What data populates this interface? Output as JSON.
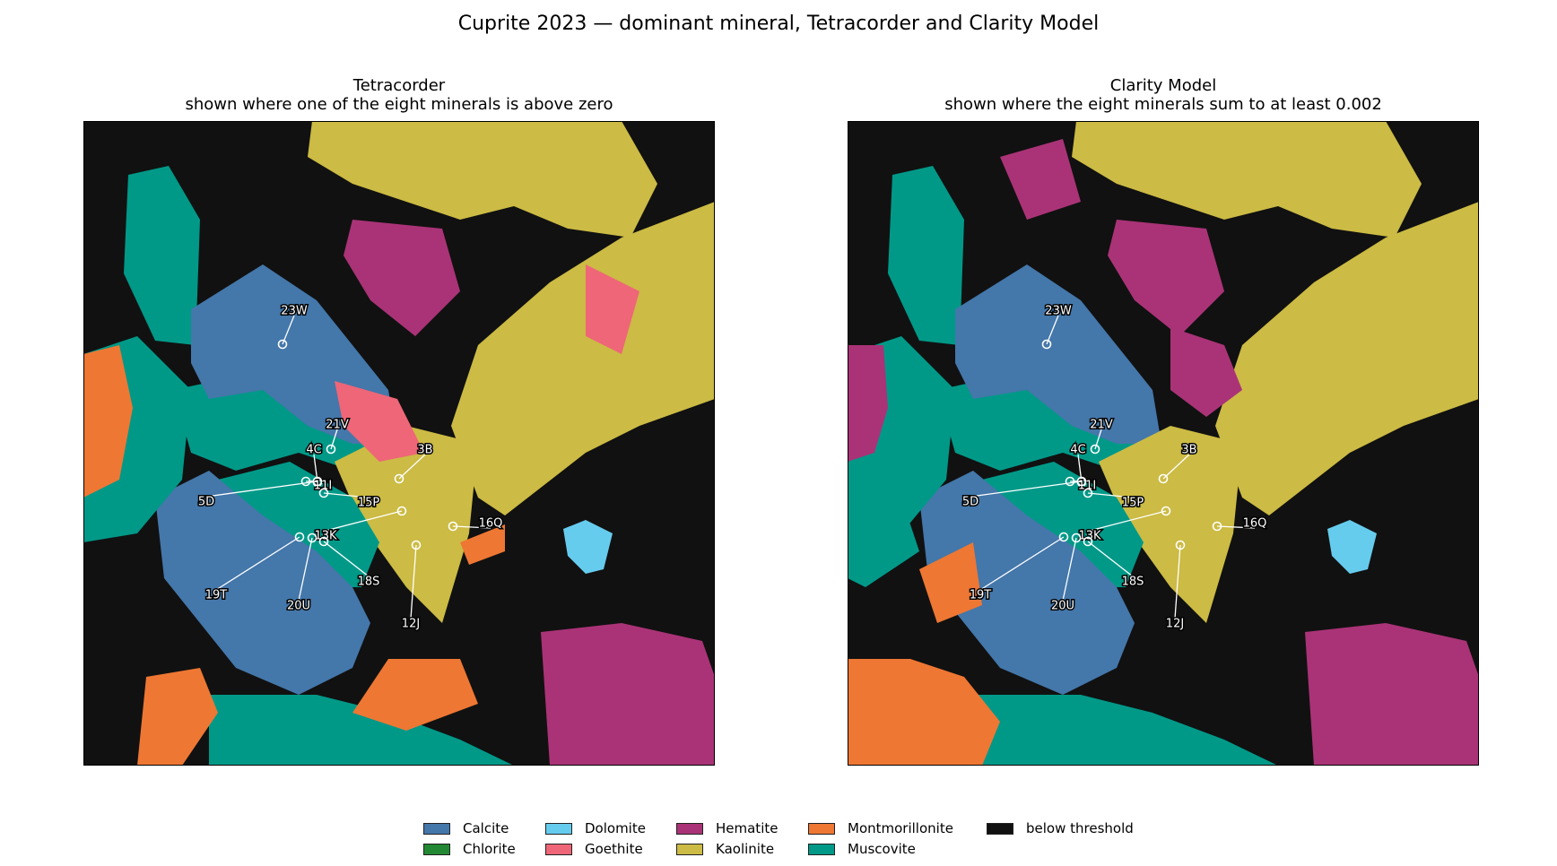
{
  "title": "Cuprite 2023 — dominant mineral, Tetracorder and Clarity Model",
  "colors": {
    "Calcite": "#4477aa",
    "Chlorite": "#228833",
    "Dolomite": "#66ccee",
    "Goethite": "#ee6677",
    "Hematite": "#aa3377",
    "Kaolinite": "#ccbb44",
    "Montmorillonite": "#ee7733",
    "Muscovite": "#009988",
    "below threshold": "#111111"
  },
  "chart_data": [
    {
      "type": "heatmap",
      "title": "Tetracorder",
      "subtitle": "shown where one of the eight minerals is above zero",
      "sites": [
        "23W",
        "21V",
        "4C",
        "3B",
        "11I",
        "5D",
        "15P",
        "16Q",
        "13K",
        "19T",
        "18S",
        "20U",
        "12J"
      ]
    },
    {
      "type": "heatmap",
      "title": "Clarity Model",
      "subtitle": "shown where the eight minerals sum to at least 0.002",
      "sites": [
        "23W",
        "21V",
        "4C",
        "3B",
        "11I",
        "5D",
        "15P",
        "16Q",
        "13K",
        "19T",
        "18S",
        "20U",
        "12J"
      ]
    }
  ],
  "legend": [
    {
      "label": "Calcite",
      "color": "#4477aa"
    },
    {
      "label": "Chlorite",
      "color": "#228833"
    },
    {
      "label": "Dolomite",
      "color": "#66ccee"
    },
    {
      "label": "Goethite",
      "color": "#ee6677"
    },
    {
      "label": "Hematite",
      "color": "#aa3377"
    },
    {
      "label": "Kaolinite",
      "color": "#ccbb44"
    },
    {
      "label": "Montmorillonite",
      "color": "#ee7733"
    },
    {
      "label": "Muscovite",
      "color": "#009988"
    },
    {
      "label": "below threshold",
      "color": "#111111"
    }
  ]
}
